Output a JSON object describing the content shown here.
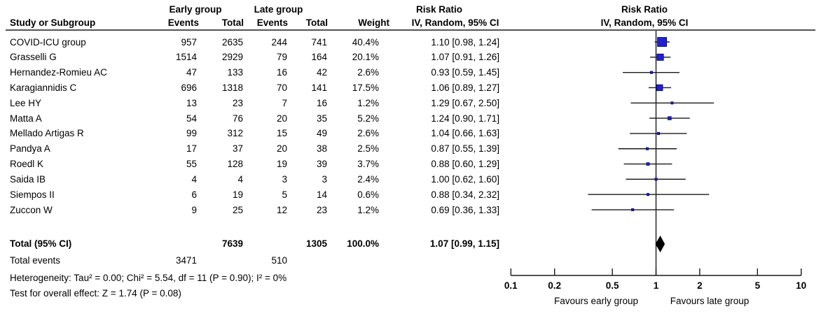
{
  "table": {
    "headers": {
      "study": "Study or Subgroup",
      "early_group": "Early group",
      "late_group": "Late group",
      "events": "Events",
      "total": "Total",
      "weight": "Weight",
      "risk_ratio": "Risk Ratio",
      "ci_method": "IV, Random, 95% CI"
    },
    "totals": {
      "label": "Total (95% CI)",
      "early_total": "7639",
      "late_total": "1305",
      "weight": "100.0%",
      "rr_text": "1.07 [0.99, 1.15]",
      "events_label": "Total events",
      "early_events": "3471",
      "late_events": "510"
    },
    "footer": {
      "heterogeneity": "Heterogeneity: Tau² = 0.00; Chi² = 5.54, df = 11 (P = 0.90); I² = 0%",
      "overall_effect": "Test for overall effect: Z = 1.74 (P = 0.08)"
    }
  },
  "chart_data": {
    "type": "forest",
    "effect_measure": "Risk Ratio",
    "method": "IV, Random, 95% CI",
    "x_scale": "log10",
    "x_range": [
      0.1,
      10
    ],
    "x_ticks": [
      "0.1",
      "0.2",
      "0.5",
      "1",
      "2",
      "5",
      "10"
    ],
    "null_line": 1,
    "favours_left": "Favours early group",
    "favours_right": "Favours late group",
    "studies": [
      {
        "name": "COVID-ICU group",
        "early_events": "957",
        "early_total": "2635",
        "late_events": "244",
        "late_total": "741",
        "weight": "40.4%",
        "rr_text": "1.10 [0.98, 1.24]",
        "rr": 1.1,
        "lo": 0.98,
        "hi": 1.24,
        "weight_pct": 40.4
      },
      {
        "name": "Grasselli G",
        "early_events": "1514",
        "early_total": "2929",
        "late_events": "79",
        "late_total": "164",
        "weight": "20.1%",
        "rr_text": "1.07 [0.91, 1.26]",
        "rr": 1.07,
        "lo": 0.91,
        "hi": 1.26,
        "weight_pct": 20.1
      },
      {
        "name": "Hernandez-Romieu AC",
        "early_events": "47",
        "early_total": "133",
        "late_events": "16",
        "late_total": "42",
        "weight": "2.6%",
        "rr_text": "0.93 [0.59, 1.45]",
        "rr": 0.93,
        "lo": 0.59,
        "hi": 1.45,
        "weight_pct": 2.6
      },
      {
        "name": "Karagiannidis C",
        "early_events": "696",
        "early_total": "1318",
        "late_events": "70",
        "late_total": "141",
        "weight": "17.5%",
        "rr_text": "1.06 [0.89, 1.27]",
        "rr": 1.06,
        "lo": 0.89,
        "hi": 1.27,
        "weight_pct": 17.5
      },
      {
        "name": "Lee HY",
        "early_events": "13",
        "early_total": "23",
        "late_events": "7",
        "late_total": "16",
        "weight": "1.2%",
        "rr_text": "1.29 [0.67, 2.50]",
        "rr": 1.29,
        "lo": 0.67,
        "hi": 2.5,
        "weight_pct": 1.2
      },
      {
        "name": "Matta A",
        "early_events": "54",
        "early_total": "76",
        "late_events": "20",
        "late_total": "35",
        "weight": "5.2%",
        "rr_text": "1.24 [0.90, 1.71]",
        "rr": 1.24,
        "lo": 0.9,
        "hi": 1.71,
        "weight_pct": 5.2
      },
      {
        "name": "Mellado Artigas R",
        "early_events": "99",
        "early_total": "312",
        "late_events": "15",
        "late_total": "49",
        "weight": "2.6%",
        "rr_text": "1.04 [0.66, 1.63]",
        "rr": 1.04,
        "lo": 0.66,
        "hi": 1.63,
        "weight_pct": 2.6
      },
      {
        "name": "Pandya A",
        "early_events": "17",
        "early_total": "37",
        "late_events": "20",
        "late_total": "38",
        "weight": "2.5%",
        "rr_text": "0.87 [0.55, 1.39]",
        "rr": 0.87,
        "lo": 0.55,
        "hi": 1.39,
        "weight_pct": 2.5
      },
      {
        "name": "Roedl K",
        "early_events": "55",
        "early_total": "128",
        "late_events": "19",
        "late_total": "39",
        "weight": "3.7%",
        "rr_text": "0.88 [0.60, 1.29]",
        "rr": 0.88,
        "lo": 0.6,
        "hi": 1.29,
        "weight_pct": 3.7
      },
      {
        "name": "Saida IB",
        "early_events": "4",
        "early_total": "4",
        "late_events": "3",
        "late_total": "3",
        "weight": "2.4%",
        "rr_text": "1.00 [0.62, 1.60]",
        "rr": 1.0,
        "lo": 0.62,
        "hi": 1.6,
        "weight_pct": 2.4
      },
      {
        "name": "Siempos II",
        "early_events": "6",
        "early_total": "19",
        "late_events": "5",
        "late_total": "14",
        "weight": "0.6%",
        "rr_text": "0.88 [0.34, 2.32]",
        "rr": 0.88,
        "lo": 0.34,
        "hi": 2.32,
        "weight_pct": 0.6
      },
      {
        "name": "Zuccon W",
        "early_events": "9",
        "early_total": "25",
        "late_events": "12",
        "late_total": "23",
        "weight": "1.2%",
        "rr_text": "0.69 [0.36, 1.33]",
        "rr": 0.69,
        "lo": 0.36,
        "hi": 1.33,
        "weight_pct": 1.2
      }
    ],
    "overall": {
      "label": "Total (95% CI)",
      "rr": 1.07,
      "lo": 0.99,
      "hi": 1.15,
      "weight_pct": 100.0
    }
  },
  "colors": {
    "marker_fill": "#2222cc",
    "marker_border": "#000080",
    "ci_line": "#1a1a1a",
    "diamond": "#000000",
    "axis": "#1a1a1a",
    "text": "#000000",
    "background": "#ffffff"
  }
}
